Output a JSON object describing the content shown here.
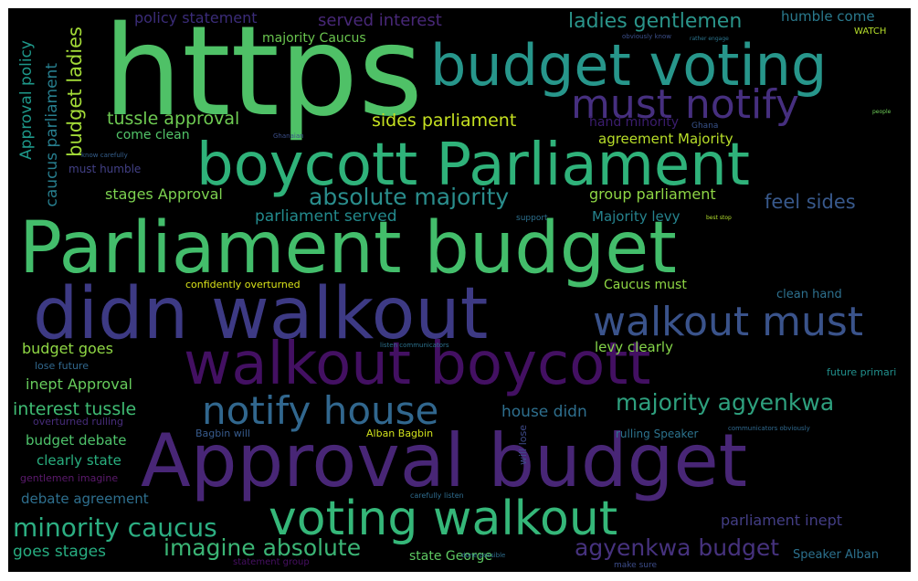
{
  "words": [
    {
      "text": "https",
      "color": "#4fc167"
    },
    {
      "text": "budget voting",
      "color": "#27968b"
    },
    {
      "text": "boycott Parliament",
      "color": "#2fb27a"
    },
    {
      "text": "Parliament budget",
      "color": "#43bd6b"
    },
    {
      "text": "didn walkout",
      "color": "#3d3a84"
    },
    {
      "text": "walkout boycott",
      "color": "#431062"
    },
    {
      "text": "Approval budget",
      "color": "#482676"
    },
    {
      "text": "must notify",
      "color": "#462f7f"
    },
    {
      "text": "walkout must",
      "color": "#3a538b"
    },
    {
      "text": "voting walkout",
      "color": "#35b779"
    },
    {
      "text": "notify house",
      "color": "#31678e"
    },
    {
      "text": "absolute majority",
      "color": "#2a8d8c"
    },
    {
      "text": "majority agyenkwa",
      "color": "#2ea07e"
    },
    {
      "text": "minority caucus",
      "color": "#2cae82"
    },
    {
      "text": "imagine absolute",
      "color": "#3bb575"
    },
    {
      "text": "agyenkwa budget",
      "color": "#46327e"
    },
    {
      "text": "ladies gentlemen",
      "color": "#2a948a"
    },
    {
      "text": "tussle approval",
      "color": "#6ecb52"
    },
    {
      "text": "sides parliament",
      "color": "#c5e021"
    },
    {
      "text": "budget ladies",
      "color": "#a2da37"
    },
    {
      "text": "caucus parliament",
      "color": "#277e8e"
    },
    {
      "text": "Approval policy",
      "color": "#1e988a"
    },
    {
      "text": "policy statement",
      "color": "#3b2c79"
    },
    {
      "text": "served interest",
      "color": "#482878"
    },
    {
      "text": "humble come",
      "color": "#2a7a8e"
    },
    {
      "text": "majority Caucus",
      "color": "#6ac64f"
    },
    {
      "text": "feel sides",
      "color": "#38598c"
    },
    {
      "text": "group parliament",
      "color": "#8ed645"
    },
    {
      "text": "stages Approval",
      "color": "#7cd250"
    },
    {
      "text": "parliament served",
      "color": "#238a8d"
    },
    {
      "text": "Majority levy",
      "color": "#26838e"
    },
    {
      "text": "agreement Majority",
      "color": "#b8de29"
    },
    {
      "text": "hand minority",
      "color": "#3b1d6e"
    },
    {
      "text": "come clean",
      "color": "#52c569"
    },
    {
      "text": "must humble",
      "color": "#424086"
    },
    {
      "text": "confidently overturned",
      "color": "#d8e219"
    },
    {
      "text": "Caucus must",
      "color": "#8fd744"
    },
    {
      "text": "clean hand",
      "color": "#2d708e"
    },
    {
      "text": "budget goes",
      "color": "#8fd744"
    },
    {
      "text": "levy clearly",
      "color": "#85d54a"
    },
    {
      "text": "inept Approval",
      "color": "#67cc5c"
    },
    {
      "text": "lose future",
      "color": "#31688e"
    },
    {
      "text": "future primari",
      "color": "#21908d"
    },
    {
      "text": "interest tussle",
      "color": "#3fbc73"
    },
    {
      "text": "house didn",
      "color": "#2e6f8e"
    },
    {
      "text": "overturned rulling",
      "color": "#472d7b"
    },
    {
      "text": "budget debate",
      "color": "#4ec36b"
    },
    {
      "text": "Bagbin will",
      "color": "#375b8d"
    },
    {
      "text": "Alban Bagbin",
      "color": "#d0e11c"
    },
    {
      "text": "rulling Speaker",
      "color": "#2c738e"
    },
    {
      "text": "clearly state",
      "color": "#29af7f"
    },
    {
      "text": "will lose",
      "color": "#3e4a89"
    },
    {
      "text": "gentlemen imagine",
      "color": "#5c1a6e"
    },
    {
      "text": "debate agreement",
      "color": "#2e6f8e"
    },
    {
      "text": "parliament inept",
      "color": "#433e85"
    },
    {
      "text": "goes stages",
      "color": "#27ad81"
    },
    {
      "text": "state George",
      "color": "#5ec962"
    },
    {
      "text": "Speaker Alban",
      "color": "#2c718e"
    },
    {
      "text": "WATCH",
      "color": "#b5de2b"
    },
    {
      "text": "statement group",
      "color": "#471063"
    },
    {
      "text": "make sure",
      "color": "#3d4d8a"
    },
    {
      "text": "support",
      "color": "#2d708e"
    },
    {
      "text": "Ghana",
      "color": "#3a548c"
    },
    {
      "text": "carefully listen",
      "color": "#2f6c8e"
    },
    {
      "text": "listen communicators",
      "color": "#2c728e"
    },
    {
      "text": "obviously know",
      "color": "#3c4f8a"
    },
    {
      "text": "rather engage",
      "color": "#2b758e"
    },
    {
      "text": "Ghanaian",
      "color": "#3c4f8a"
    },
    {
      "text": "communicators obviously",
      "color": "#30698e"
    },
    {
      "text": "know carefully",
      "color": "#355f8d"
    },
    {
      "text": "done possible",
      "color": "#2e6e8e"
    },
    {
      "text": "best stop",
      "color": "#b2dd2d"
    },
    {
      "text": "people",
      "color": "#6ece58"
    }
  ]
}
